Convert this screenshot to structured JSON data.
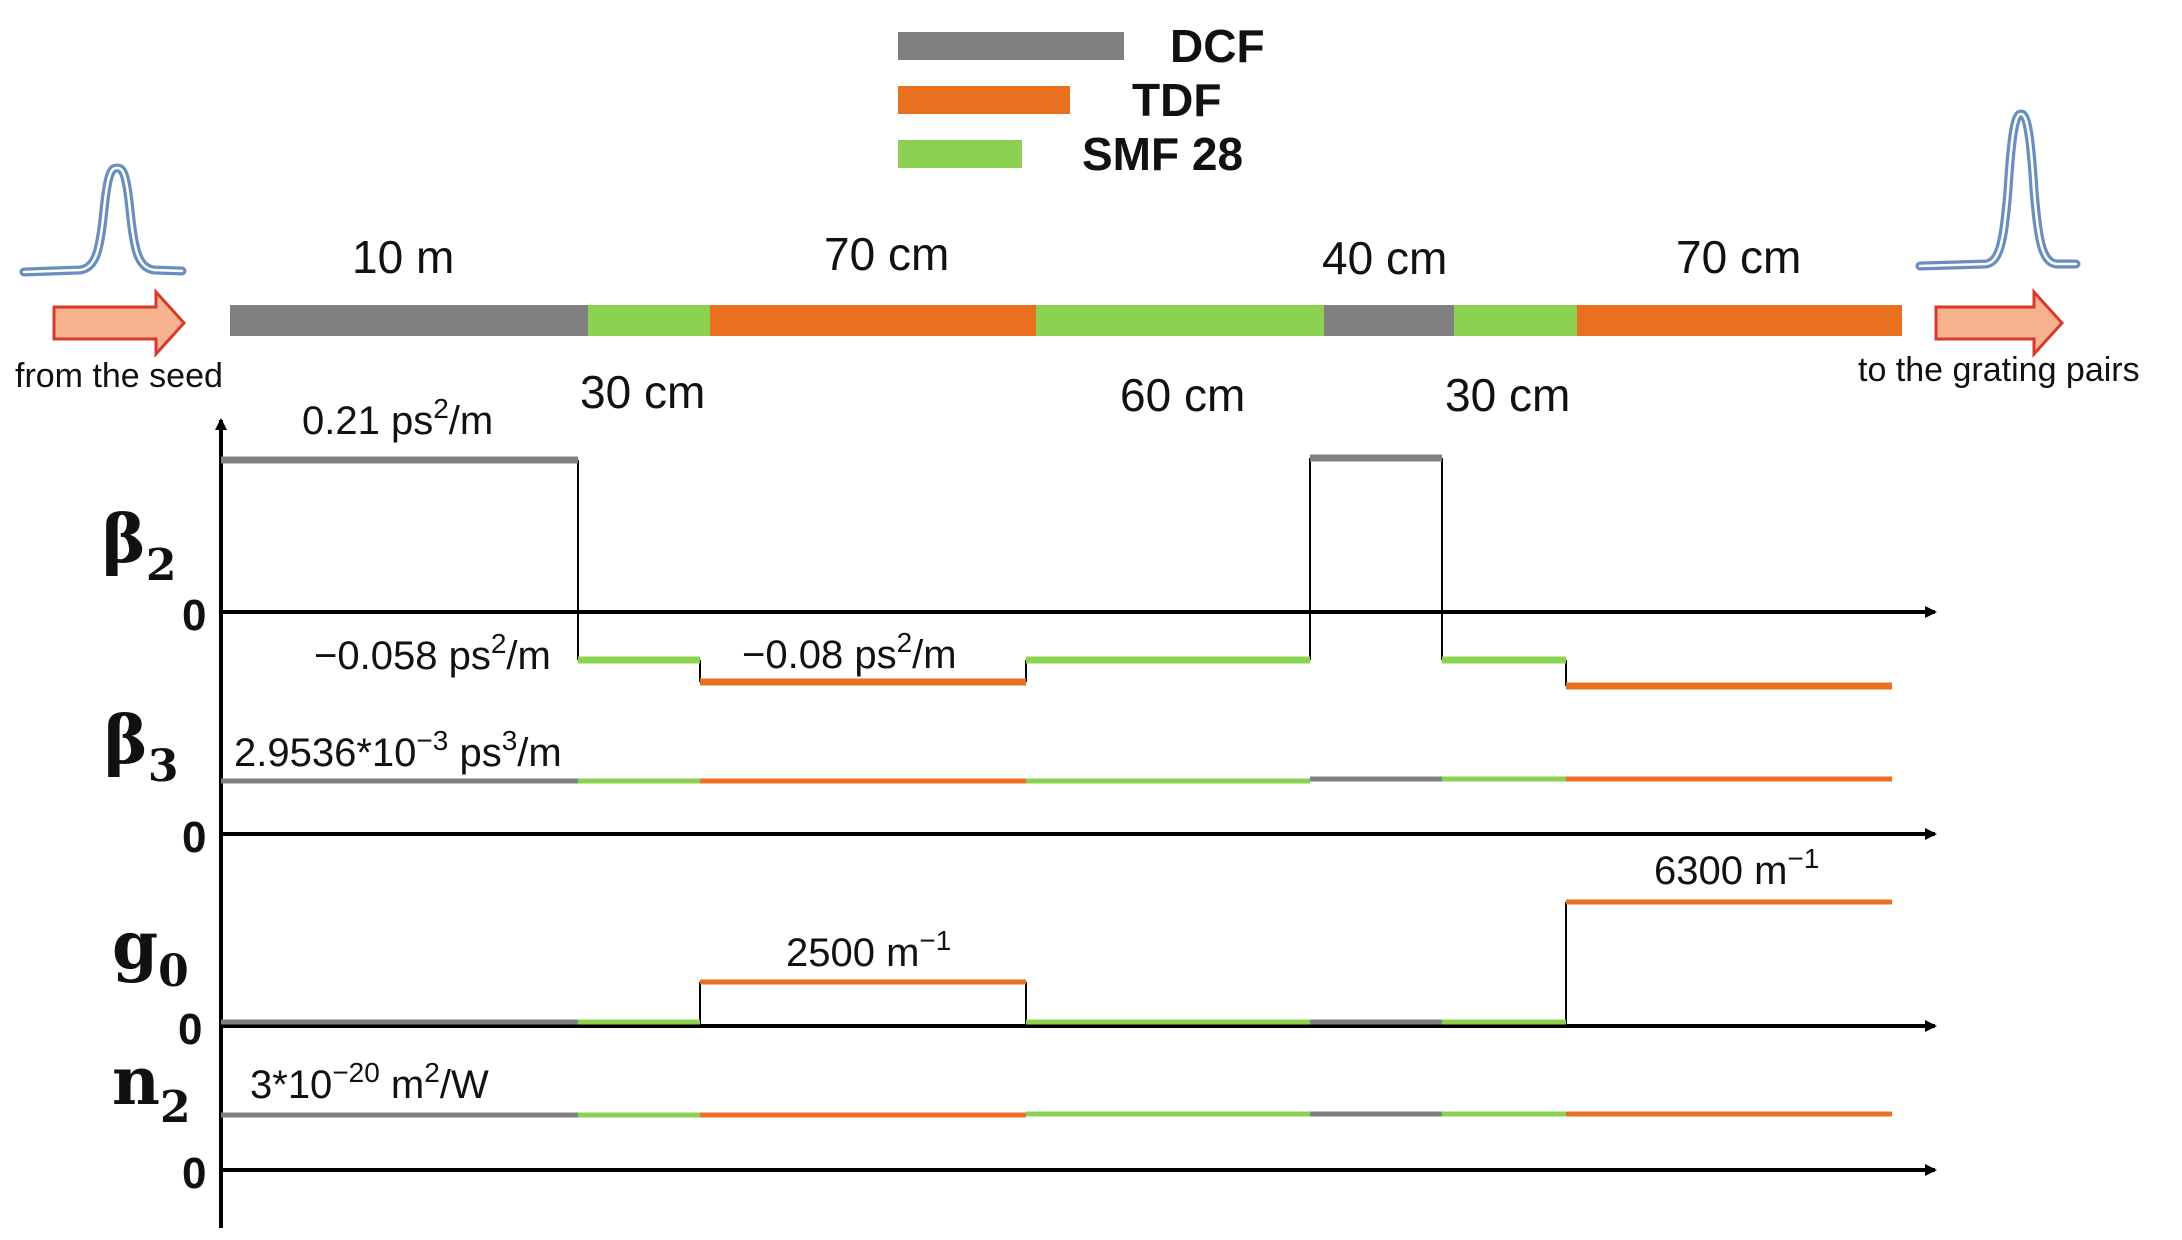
{
  "legend": [
    {
      "label": "DCF",
      "color": "#808080"
    },
    {
      "label": "TDF",
      "color": "#E8701E"
    },
    {
      "label": "SMF 28",
      "color": "#8CD152"
    }
  ],
  "fiber_segments": [
    {
      "fiber": "DCF",
      "length": "10 m"
    },
    {
      "fiber": "SMF 28",
      "length": "30 cm"
    },
    {
      "fiber": "TDF",
      "length": "70 cm"
    },
    {
      "fiber": "SMF 28",
      "length": "60 cm"
    },
    {
      "fiber": "DCF",
      "length": "40 cm"
    },
    {
      "fiber": "SMF 28",
      "length": "30 cm"
    },
    {
      "fiber": "TDF",
      "length": "70 cm"
    }
  ],
  "input_label": "from the seed",
  "output_label": "to the grating pairs",
  "colors": {
    "DCF": "#808080",
    "TDF": "#E8701E",
    "SMF 28": "#8CD152",
    "arrow_fill": "#F7B38E",
    "arrow_stroke": "#D9382E",
    "pulse": "#6A8FBF"
  },
  "axes": [
    {
      "key": "beta2",
      "symbol": "β",
      "subscript": "2",
      "zero": "0"
    },
    {
      "key": "beta3",
      "symbol": "β",
      "subscript": "3",
      "zero": "0"
    },
    {
      "key": "g0",
      "symbol": "g",
      "subscript": "0",
      "zero": "0"
    },
    {
      "key": "n2",
      "symbol": "n",
      "subscript": "2",
      "zero": "0"
    }
  ],
  "annotations": {
    "beta2_dcf": {
      "main": "0.21 ps",
      "sup": "2",
      "tail": "/m"
    },
    "beta2_smf": {
      "main": "−0.058 ps",
      "sup": "2",
      "tail": "/m"
    },
    "beta2_tdf": {
      "main": "−0.08 ps",
      "sup": "2",
      "tail": "/m"
    },
    "beta3": {
      "main": "2.9536*10",
      "sup": "−3",
      "mid": " ps",
      "sup2": "3",
      "tail": "/m"
    },
    "g0_first": {
      "main": "2500 m",
      "sup": "−1"
    },
    "g0_second": {
      "main": "6300 m",
      "sup": "−1"
    },
    "n2": {
      "main": "3*10",
      "sup": "−20",
      "mid": " m",
      "sup2": "2",
      "tail": "/W"
    }
  },
  "chart_data": {
    "type": "line",
    "x_categories": [
      "DCF 10 m",
      "SMF 28 30 cm",
      "TDF 70 cm",
      "SMF 28 60 cm",
      "DCF 40 cm",
      "SMF 28 30 cm",
      "TDF 70 cm"
    ],
    "series": [
      {
        "name": "β2",
        "unit": "ps^2/m",
        "values": [
          0.21,
          -0.058,
          -0.08,
          -0.058,
          0.21,
          -0.058,
          -0.08
        ]
      },
      {
        "name": "β3",
        "unit": "ps^3/m",
        "values": [
          0.0029536,
          0.0029536,
          0.0029536,
          0.0029536,
          0.0029536,
          0.0029536,
          0.0029536
        ]
      },
      {
        "name": "g0",
        "unit": "m^-1",
        "values": [
          0,
          0,
          2500,
          0,
          0,
          0,
          6300
        ]
      },
      {
        "name": "n2",
        "unit": "m^2/W",
        "values": [
          3e-20,
          3e-20,
          3e-20,
          3e-20,
          3e-20,
          3e-20,
          3e-20
        ]
      }
    ]
  }
}
